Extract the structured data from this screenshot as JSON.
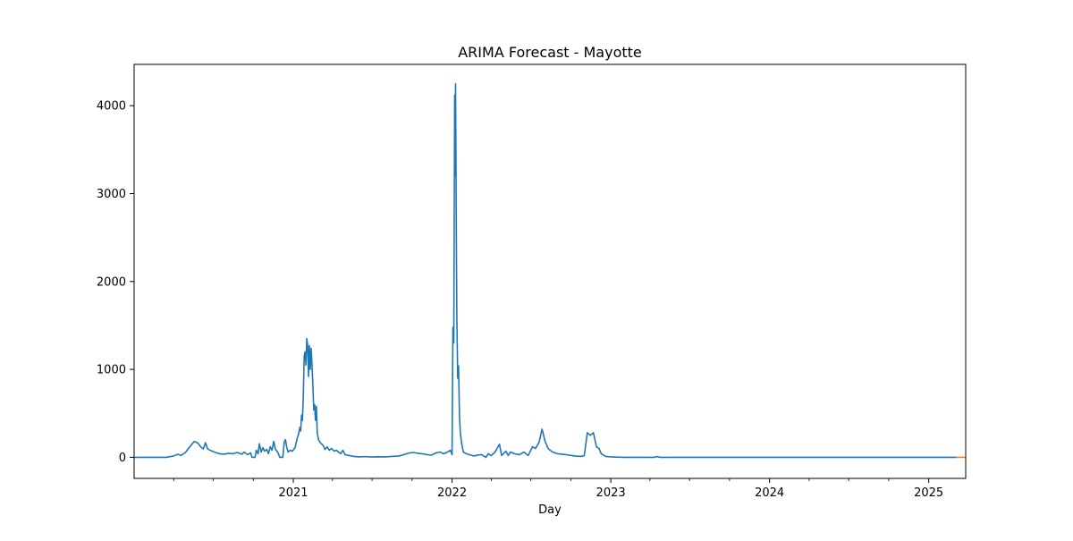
{
  "chart_data": {
    "type": "line",
    "title": "ARIMA Forecast - Mayotte",
    "xlabel": "Day",
    "ylabel": "",
    "xlim": [
      "2020-01-01",
      "2025-03-27"
    ],
    "ylim": [
      -240,
      4470
    ],
    "x_ticks": [
      {
        "label": "2021",
        "date": "2021-01-01"
      },
      {
        "label": "2022",
        "date": "2022-01-01"
      },
      {
        "label": "2023",
        "date": "2023-01-01"
      },
      {
        "label": "2024",
        "date": "2024-01-01"
      },
      {
        "label": "2025",
        "date": "2025-01-01"
      }
    ],
    "x_minor_ticks": [
      "2020-04-01",
      "2020-07-01",
      "2020-10-01",
      "2021-04-01",
      "2021-07-01",
      "2021-10-01",
      "2022-04-01",
      "2022-07-01",
      "2022-10-01",
      "2023-04-01",
      "2023-07-01",
      "2023-10-01",
      "2024-04-01",
      "2024-07-01",
      "2024-10-01"
    ],
    "y_ticks": [
      0,
      1000,
      2000,
      3000,
      4000
    ],
    "grid": false,
    "legend": "none",
    "colors": {
      "history": "#1f77b4",
      "forecast": "#ff7f0e",
      "axes": "#000000"
    },
    "series": [
      {
        "role": "history",
        "points": [
          [
            "2020-01-01",
            0
          ],
          [
            "2020-03-15",
            0
          ],
          [
            "2020-04-01",
            15
          ],
          [
            "2020-04-10",
            35
          ],
          [
            "2020-04-18",
            22
          ],
          [
            "2020-04-28",
            55
          ],
          [
            "2020-05-08",
            120
          ],
          [
            "2020-05-18",
            180
          ],
          [
            "2020-05-26",
            165
          ],
          [
            "2020-06-02",
            120
          ],
          [
            "2020-06-08",
            95
          ],
          [
            "2020-06-13",
            165
          ],
          [
            "2020-06-18",
            95
          ],
          [
            "2020-06-26",
            75
          ],
          [
            "2020-07-06",
            55
          ],
          [
            "2020-07-16",
            40
          ],
          [
            "2020-07-25",
            35
          ],
          [
            "2020-08-05",
            45
          ],
          [
            "2020-08-15",
            40
          ],
          [
            "2020-08-25",
            55
          ],
          [
            "2020-09-05",
            35
          ],
          [
            "2020-09-10",
            60
          ],
          [
            "2020-09-18",
            30
          ],
          [
            "2020-09-25",
            50
          ],
          [
            "2020-09-28",
            0
          ],
          [
            "2020-10-05",
            0
          ],
          [
            "2020-10-08",
            80
          ],
          [
            "2020-10-12",
            40
          ],
          [
            "2020-10-15",
            155
          ],
          [
            "2020-10-19",
            60
          ],
          [
            "2020-10-23",
            110
          ],
          [
            "2020-10-27",
            70
          ],
          [
            "2020-11-01",
            90
          ],
          [
            "2020-11-05",
            40
          ],
          [
            "2020-11-09",
            120
          ],
          [
            "2020-11-13",
            80
          ],
          [
            "2020-11-17",
            180
          ],
          [
            "2020-11-21",
            90
          ],
          [
            "2020-11-26",
            60
          ],
          [
            "2020-12-01",
            0
          ],
          [
            "2020-12-08",
            0
          ],
          [
            "2020-12-11",
            170
          ],
          [
            "2020-12-14",
            200
          ],
          [
            "2020-12-17",
            110
          ],
          [
            "2020-12-20",
            60
          ],
          [
            "2020-12-25",
            80
          ],
          [
            "2020-12-30",
            70
          ],
          [
            "2021-01-05",
            110
          ],
          [
            "2021-01-10",
            220
          ],
          [
            "2021-01-13",
            260
          ],
          [
            "2021-01-16",
            340
          ],
          [
            "2021-01-18",
            300
          ],
          [
            "2021-01-20",
            480
          ],
          [
            "2021-01-22",
            420
          ],
          [
            "2021-01-24",
            700
          ],
          [
            "2021-01-26",
            1150
          ],
          [
            "2021-01-28",
            1200
          ],
          [
            "2021-01-30",
            1050
          ],
          [
            "2021-02-01",
            1350
          ],
          [
            "2021-02-03",
            1280
          ],
          [
            "2021-02-05",
            920
          ],
          [
            "2021-02-07",
            1270
          ],
          [
            "2021-02-09",
            1000
          ],
          [
            "2021-02-11",
            1240
          ],
          [
            "2021-02-13",
            1050
          ],
          [
            "2021-02-15",
            820
          ],
          [
            "2021-02-17",
            540
          ],
          [
            "2021-02-19",
            600
          ],
          [
            "2021-02-21",
            420
          ],
          [
            "2021-02-23",
            580
          ],
          [
            "2021-02-25",
            280
          ],
          [
            "2021-02-28",
            200
          ],
          [
            "2021-03-05",
            160
          ],
          [
            "2021-03-10",
            140
          ],
          [
            "2021-03-15",
            90
          ],
          [
            "2021-03-20",
            120
          ],
          [
            "2021-03-25",
            80
          ],
          [
            "2021-03-30",
            100
          ],
          [
            "2021-04-05",
            70
          ],
          [
            "2021-04-10",
            80
          ],
          [
            "2021-04-15",
            60
          ],
          [
            "2021-04-20",
            40
          ],
          [
            "2021-04-25",
            80
          ],
          [
            "2021-04-30",
            30
          ],
          [
            "2021-05-10",
            20
          ],
          [
            "2021-05-20",
            10
          ],
          [
            "2021-06-01",
            5
          ],
          [
            "2021-06-15",
            8
          ],
          [
            "2021-07-01",
            3
          ],
          [
            "2021-07-15",
            6
          ],
          [
            "2021-08-01",
            5
          ],
          [
            "2021-08-15",
            10
          ],
          [
            "2021-09-01",
            15
          ],
          [
            "2021-09-15",
            35
          ],
          [
            "2021-09-25",
            50
          ],
          [
            "2021-10-05",
            55
          ],
          [
            "2021-10-15",
            45
          ],
          [
            "2021-10-25",
            40
          ],
          [
            "2021-11-05",
            30
          ],
          [
            "2021-11-15",
            25
          ],
          [
            "2021-11-25",
            50
          ],
          [
            "2021-12-05",
            60
          ],
          [
            "2021-12-12",
            40
          ],
          [
            "2021-12-20",
            55
          ],
          [
            "2021-12-28",
            80
          ],
          [
            "2022-01-01",
            30
          ],
          [
            "2022-01-03",
            1480
          ],
          [
            "2022-01-05",
            1300
          ],
          [
            "2022-01-07",
            4120
          ],
          [
            "2022-01-08",
            3200
          ],
          [
            "2022-01-09",
            4250
          ],
          [
            "2022-01-10",
            3400
          ],
          [
            "2022-01-11",
            2400
          ],
          [
            "2022-01-12",
            1600
          ],
          [
            "2022-01-14",
            900
          ],
          [
            "2022-01-16",
            1040
          ],
          [
            "2022-01-18",
            480
          ],
          [
            "2022-01-20",
            280
          ],
          [
            "2022-01-23",
            160
          ],
          [
            "2022-01-27",
            60
          ],
          [
            "2022-02-03",
            40
          ],
          [
            "2022-02-10",
            30
          ],
          [
            "2022-02-20",
            15
          ],
          [
            "2022-03-01",
            25
          ],
          [
            "2022-03-10",
            30
          ],
          [
            "2022-03-20",
            0
          ],
          [
            "2022-03-25",
            40
          ],
          [
            "2022-04-01",
            20
          ],
          [
            "2022-04-10",
            60
          ],
          [
            "2022-04-20",
            150
          ],
          [
            "2022-04-25",
            20
          ],
          [
            "2022-05-05",
            70
          ],
          [
            "2022-05-10",
            20
          ],
          [
            "2022-05-15",
            60
          ],
          [
            "2022-05-25",
            40
          ],
          [
            "2022-06-05",
            30
          ],
          [
            "2022-06-15",
            60
          ],
          [
            "2022-06-25",
            20
          ],
          [
            "2022-07-05",
            120
          ],
          [
            "2022-07-12",
            100
          ],
          [
            "2022-07-20",
            170
          ],
          [
            "2022-07-27",
            320
          ],
          [
            "2022-08-03",
            180
          ],
          [
            "2022-08-10",
            100
          ],
          [
            "2022-08-20",
            60
          ],
          [
            "2022-09-01",
            40
          ],
          [
            "2022-09-20",
            30
          ],
          [
            "2022-10-10",
            15
          ],
          [
            "2022-10-25",
            10
          ],
          [
            "2022-11-01",
            20
          ],
          [
            "2022-11-08",
            280
          ],
          [
            "2022-11-15",
            250
          ],
          [
            "2022-11-22",
            280
          ],
          [
            "2022-11-29",
            120
          ],
          [
            "2022-12-05",
            100
          ],
          [
            "2022-12-10",
            40
          ],
          [
            "2022-12-20",
            10
          ],
          [
            "2023-01-05",
            3
          ],
          [
            "2023-02-01",
            0
          ],
          [
            "2023-04-10",
            0
          ],
          [
            "2023-04-17",
            8
          ],
          [
            "2023-04-24",
            0
          ],
          [
            "2025-03-06",
            0
          ]
        ]
      },
      {
        "role": "forecast",
        "points": [
          [
            "2025-03-06",
            0
          ],
          [
            "2025-03-27",
            0
          ]
        ]
      }
    ]
  }
}
